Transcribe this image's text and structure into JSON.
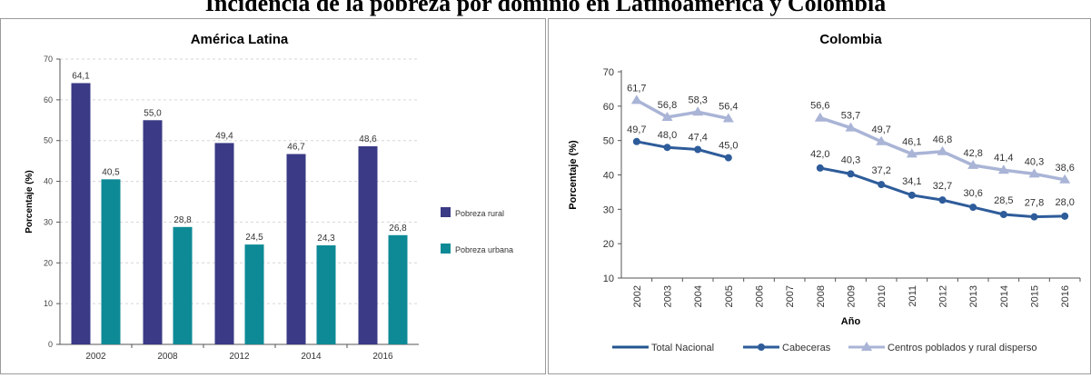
{
  "figure_title": "Incidencia de la pobreza por dominio en Latinoamérica y Colombia",
  "chart_data": [
    {
      "type": "bar",
      "title": "América Latina",
      "xlabel": "",
      "ylabel": "Porcentaje (%)",
      "ylim": [
        0,
        70
      ],
      "yticks": [
        "0",
        "10",
        "20",
        "30",
        "40",
        "50",
        "60",
        "70"
      ],
      "categories": [
        "2002",
        "2008",
        "2012",
        "2014",
        "2016"
      ],
      "series": [
        {
          "name": "Pobreza rural",
          "color": "#3a3a86",
          "values": [
            64.1,
            55.0,
            49.4,
            46.7,
            48.6
          ],
          "labels": [
            "64,1",
            "55,0",
            "49,4",
            "46,7",
            "48,6"
          ]
        },
        {
          "name": "Pobreza urbana",
          "color": "#0e8a96",
          "values": [
            40.5,
            28.8,
            24.5,
            24.3,
            26.8
          ],
          "labels": [
            "40,5",
            "28,8",
            "24,5",
            "24,3",
            "26,8"
          ]
        }
      ],
      "legend_position": "right",
      "grid": true
    },
    {
      "type": "line",
      "title": "Colombia",
      "xlabel": "Año",
      "ylabel": "Porcentaje (%)",
      "ylim": [
        10,
        70
      ],
      "yticks": [
        "10",
        "20",
        "30",
        "40",
        "50",
        "60",
        "70"
      ],
      "categories": [
        "2002",
        "2003",
        "2004",
        "2005",
        "2006",
        "2007",
        "2008",
        "2009",
        "2010",
        "2011",
        "2012",
        "2013",
        "2014",
        "2015",
        "2016"
      ],
      "series": [
        {
          "name": "Total Nacional",
          "color": "#23558f",
          "marker": "none",
          "values": [
            null,
            null,
            null,
            null,
            null,
            null,
            null,
            null,
            null,
            null,
            null,
            null,
            null,
            null,
            null
          ],
          "labels": []
        },
        {
          "name": "Cabeceras",
          "color": "#2e5c9a",
          "marker": "circle",
          "values": [
            49.7,
            48.0,
            47.4,
            45.0,
            null,
            null,
            42.0,
            40.3,
            37.2,
            34.1,
            32.7,
            30.6,
            28.5,
            27.8,
            28.0
          ],
          "labels": [
            "49,7",
            "48,0",
            "47,4",
            "45,0",
            "",
            "",
            "42,0",
            "40,3",
            "37,2",
            "34,1",
            "32,7",
            "30,6",
            "28,5",
            "27,8",
            "28,0"
          ]
        },
        {
          "name": "Centros poblados y rural disperso",
          "color": "#a9b4d6",
          "marker": "triangle",
          "values": [
            61.7,
            56.8,
            58.3,
            56.4,
            null,
            null,
            56.6,
            53.7,
            49.7,
            46.1,
            46.8,
            42.8,
            41.4,
            40.3,
            38.6
          ],
          "labels": [
            "61,7",
            "56,8",
            "58,3",
            "56,4",
            "",
            "",
            "56,6",
            "53,7",
            "49,7",
            "46,1",
            "46,8",
            "42,8",
            "41,4",
            "40,3",
            "38,6"
          ]
        }
      ],
      "legend_position": "bottom",
      "grid": false
    }
  ]
}
